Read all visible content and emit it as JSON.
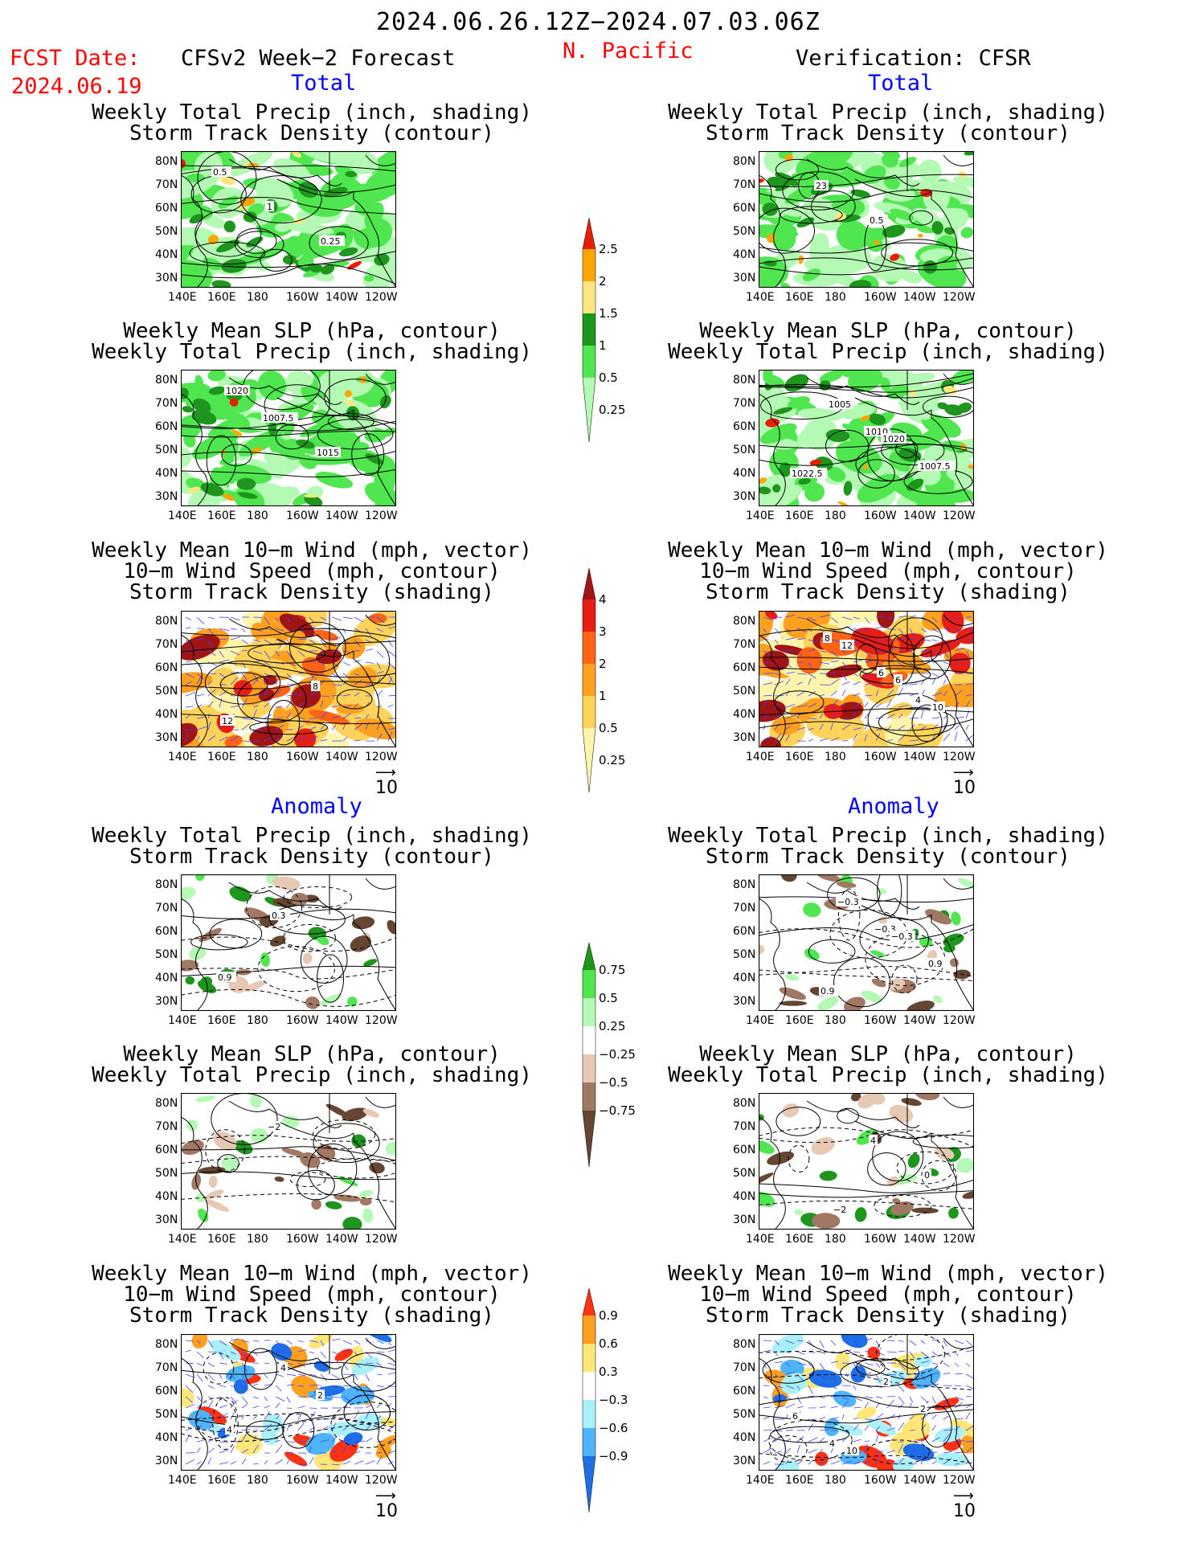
{
  "header": {
    "date_range": "2024.06.26.12Z−2024.07.03.06Z",
    "fcst_date_label": "FCST Date:",
    "fcst_date_value": "2024.06.19",
    "forecast_label": "CFSv2 Week−2 Forecast",
    "region": "N. Pacific",
    "verification_label": "Verification: CFSR"
  },
  "sections": {
    "total_left": "Total",
    "total_right": "Total",
    "anomaly_left": "Anomaly",
    "anomaly_right": "Anomaly"
  },
  "axes": {
    "lon_ticks": [
      "140E",
      "160E",
      "180",
      "160W",
      "140W",
      "120W"
    ],
    "lat_ticks": [
      "80N",
      "70N",
      "60N",
      "50N",
      "40N",
      "30N"
    ]
  },
  "panels": [
    {
      "title": [
        "Weekly Total Precip (inch, shading)",
        "Storm Track Density (contour)"
      ],
      "labels": [
        "0.5",
        "1",
        "0.25"
      ],
      "type": "precip"
    },
    {
      "title": [
        "Weekly Total Precip (inch, shading)",
        "Storm Track Density (contour)"
      ],
      "labels": [
        "23",
        "0.5"
      ],
      "type": "precip"
    },
    {
      "title": [
        "Weekly Mean SLP (hPa, contour)",
        "Weekly Total Precip (inch, shading)"
      ],
      "labels": [
        "1007.5",
        "1015",
        "1020"
      ],
      "type": "precip"
    },
    {
      "title": [
        "Weekly Mean SLP (hPa, contour)",
        "Weekly Total Precip (inch, shading)"
      ],
      "labels": [
        "1010",
        "1007.5",
        "1005",
        "1020",
        "1022.5"
      ],
      "type": "precip"
    },
    {
      "title": [
        "Weekly Mean 10−m Wind (mph, vector)",
        "10−m Wind Speed (mph, contour)",
        "Storm Track Density (shading)"
      ],
      "labels": [
        "8",
        "12"
      ],
      "type": "storm"
    },
    {
      "title": [
        "Weekly Mean 10−m Wind (mph, vector)",
        "10−m Wind Speed (mph, contour)",
        "Storm Track Density (shading)"
      ],
      "labels": [
        "4",
        "8",
        "6",
        "10",
        "12",
        "6"
      ],
      "type": "storm"
    },
    {
      "title": [
        "Weekly Total Precip (inch, shading)",
        "Storm Track Density (contour)"
      ],
      "labels": [
        "0.9",
        "0.3"
      ],
      "type": "precip_anom"
    },
    {
      "title": [
        "Weekly Total Precip (inch, shading)",
        "Storm Track Density (contour)"
      ],
      "labels": [
        "0.9",
        "−0.3",
        "0.9",
        "−0.3",
        "−0.3"
      ],
      "type": "precip_anom"
    },
    {
      "title": [
        "Weekly Mean SLP (hPa, contour)",
        "Weekly Total Precip (inch, shading)"
      ],
      "labels": [
        "−2"
      ],
      "type": "precip_anom"
    },
    {
      "title": [
        "Weekly Mean SLP (hPa, contour)",
        "Weekly Total Precip (inch, shading)"
      ],
      "labels": [
        "4",
        "0",
        "−2"
      ],
      "type": "precip_anom"
    },
    {
      "title": [
        "Weekly Mean 10−m Wind (mph, vector)",
        "10−m Wind Speed (mph, contour)",
        "Storm Track Density (shading)"
      ],
      "labels": [
        "2",
        "4",
        "4"
      ],
      "type": "storm_anom"
    },
    {
      "title": [
        "Weekly Mean 10−m Wind (mph, vector)",
        "10−m Wind Speed (mph, contour)",
        "Storm Track Density (shading)"
      ],
      "labels": [
        "2",
        "4",
        "2",
        "6",
        "10"
      ],
      "type": "storm_anom"
    }
  ],
  "vector_ref": "10",
  "colorbars": [
    {
      "name": "precip-total",
      "labels": [
        "2.5",
        "2",
        "1.5",
        "1",
        "0.5",
        "0.25"
      ],
      "colors": [
        "#e81e00",
        "#ffa500",
        "#ffe680",
        "#1e961e",
        "#50e650",
        "#b4fab4"
      ]
    },
    {
      "name": "storm-total",
      "labels": [
        "4",
        "3",
        "2",
        "1",
        "0.5",
        "0.25"
      ],
      "colors": [
        "#a01414",
        "#e61e14",
        "#ff6414",
        "#ffa01e",
        "#ffd25a",
        "#fff5aa"
      ]
    },
    {
      "name": "precip-anomaly",
      "labels": [
        "0.75",
        "0.5",
        "0.25",
        "−0.25",
        "−0.5",
        "−0.75"
      ],
      "colors": [
        "#1e961e",
        "#50e650",
        "#b4fab4",
        "#ffffff",
        "#e6c8b4",
        "#a07864",
        "#644632"
      ]
    },
    {
      "name": "storm-anomaly",
      "labels": [
        "0.9",
        "0.6",
        "0.3",
        "−0.3",
        "−0.6",
        "−0.9"
      ],
      "colors": [
        "#ff3214",
        "#ffa01e",
        "#ffe678",
        "#ffffff",
        "#aaf0fa",
        "#50b4fa",
        "#1e6ee6"
      ]
    }
  ]
}
